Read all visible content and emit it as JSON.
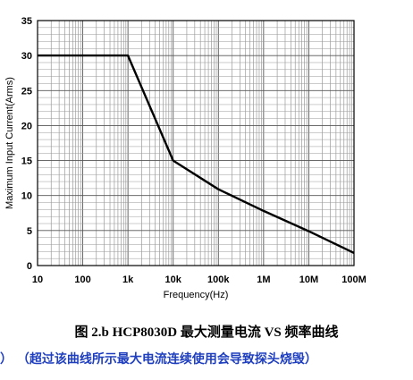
{
  "chart_data": {
    "type": "line",
    "title": "",
    "xlabel": "Frequency(Hz)",
    "ylabel": "Maximum  Input Current(Arms)",
    "xscale": "log",
    "xlim": [
      10,
      100000000
    ],
    "ylim": [
      0,
      35
    ],
    "grid": true,
    "x_tick_labels": [
      "10",
      "100",
      "1k",
      "10k",
      "100k",
      "1M",
      "10M",
      "100M"
    ],
    "y_tick_labels": [
      "0",
      "5",
      "10",
      "15",
      "20",
      "25",
      "30",
      "35"
    ],
    "series": [
      {
        "x": [
          10,
          1000,
          10000,
          100000,
          1000000,
          10000000,
          100000000
        ],
        "y": [
          30,
          30,
          15,
          10.9,
          7.8,
          4.9,
          1.8
        ]
      }
    ],
    "line_color": "#000000"
  },
  "caption": {
    "title": "图 2.b HCP8030D 最大测量电流 VS 频率曲线",
    "note": "）  （超过该曲线所示最大电流连续使用会导致探头烧毁）"
  }
}
